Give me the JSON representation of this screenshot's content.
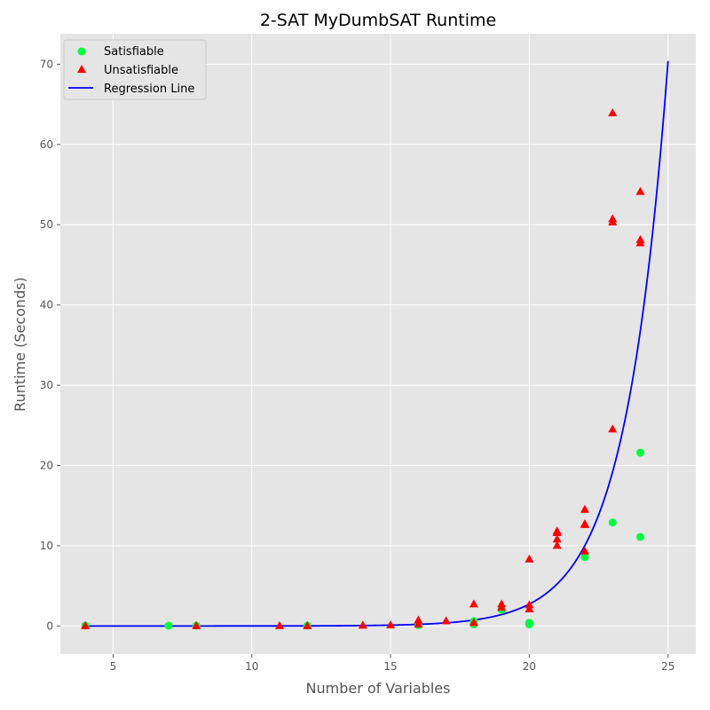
{
  "chart_data": {
    "type": "scatter",
    "title": "2-SAT MyDumbSAT Runtime",
    "xlabel": "Number of Variables",
    "ylabel": "Runtime (Seconds)",
    "xlim": [
      3.1,
      26.0
    ],
    "ylim": [
      -3.5,
      73.8
    ],
    "xticks": [
      5,
      10,
      15,
      20,
      25
    ],
    "yticks": [
      0,
      10,
      20,
      30,
      40,
      50,
      60,
      70
    ],
    "grid": true,
    "legend_position": "top-left",
    "colors": {
      "background": "#e5e5e5",
      "grid": "#ffffff",
      "satisfiable": "#00ff40",
      "unsatisfiable": "#ff0000",
      "regression": "#0000ff"
    },
    "series": [
      {
        "name": "Satisfiable",
        "marker": "circle",
        "points": [
          [
            4,
            0.05
          ],
          [
            7,
            0.05
          ],
          [
            8,
            0.05
          ],
          [
            12,
            0.05
          ],
          [
            16,
            0.1
          ],
          [
            18,
            0.2
          ],
          [
            18,
            0.6
          ],
          [
            19,
            2.0
          ],
          [
            20,
            0.2
          ],
          [
            20,
            0.4
          ],
          [
            22,
            8.6
          ],
          [
            23,
            12.9
          ],
          [
            24,
            21.6
          ],
          [
            24,
            11.1
          ]
        ]
      },
      {
        "name": "Unsatisfiable",
        "marker": "triangle",
        "points": [
          [
            4,
            0.0
          ],
          [
            8,
            0.0
          ],
          [
            11,
            0.0
          ],
          [
            12,
            0.0
          ],
          [
            14,
            0.05
          ],
          [
            15,
            0.1
          ],
          [
            16,
            0.2
          ],
          [
            16,
            0.7
          ],
          [
            17,
            0.6
          ],
          [
            18,
            0.4
          ],
          [
            18,
            2.7
          ],
          [
            19,
            2.3
          ],
          [
            19,
            2.7
          ],
          [
            20,
            2.1
          ],
          [
            20,
            2.6
          ],
          [
            20,
            8.3
          ],
          [
            21,
            10.0
          ],
          [
            21,
            10.8
          ],
          [
            21,
            11.6
          ],
          [
            21,
            11.8
          ],
          [
            22,
            9.3
          ],
          [
            22,
            12.6
          ],
          [
            22,
            12.7
          ],
          [
            22,
            14.5
          ],
          [
            23,
            24.5
          ],
          [
            23,
            50.3
          ],
          [
            23,
            50.7
          ],
          [
            23,
            63.9
          ],
          [
            24,
            47.7
          ],
          [
            24,
            48.1
          ],
          [
            24,
            54.1
          ]
        ]
      },
      {
        "name": "Regression Line",
        "type": "line",
        "formula": "y = 70.4 * exp(0.65 * (x - 25))",
        "x_range": [
          4,
          25
        ]
      }
    ]
  }
}
